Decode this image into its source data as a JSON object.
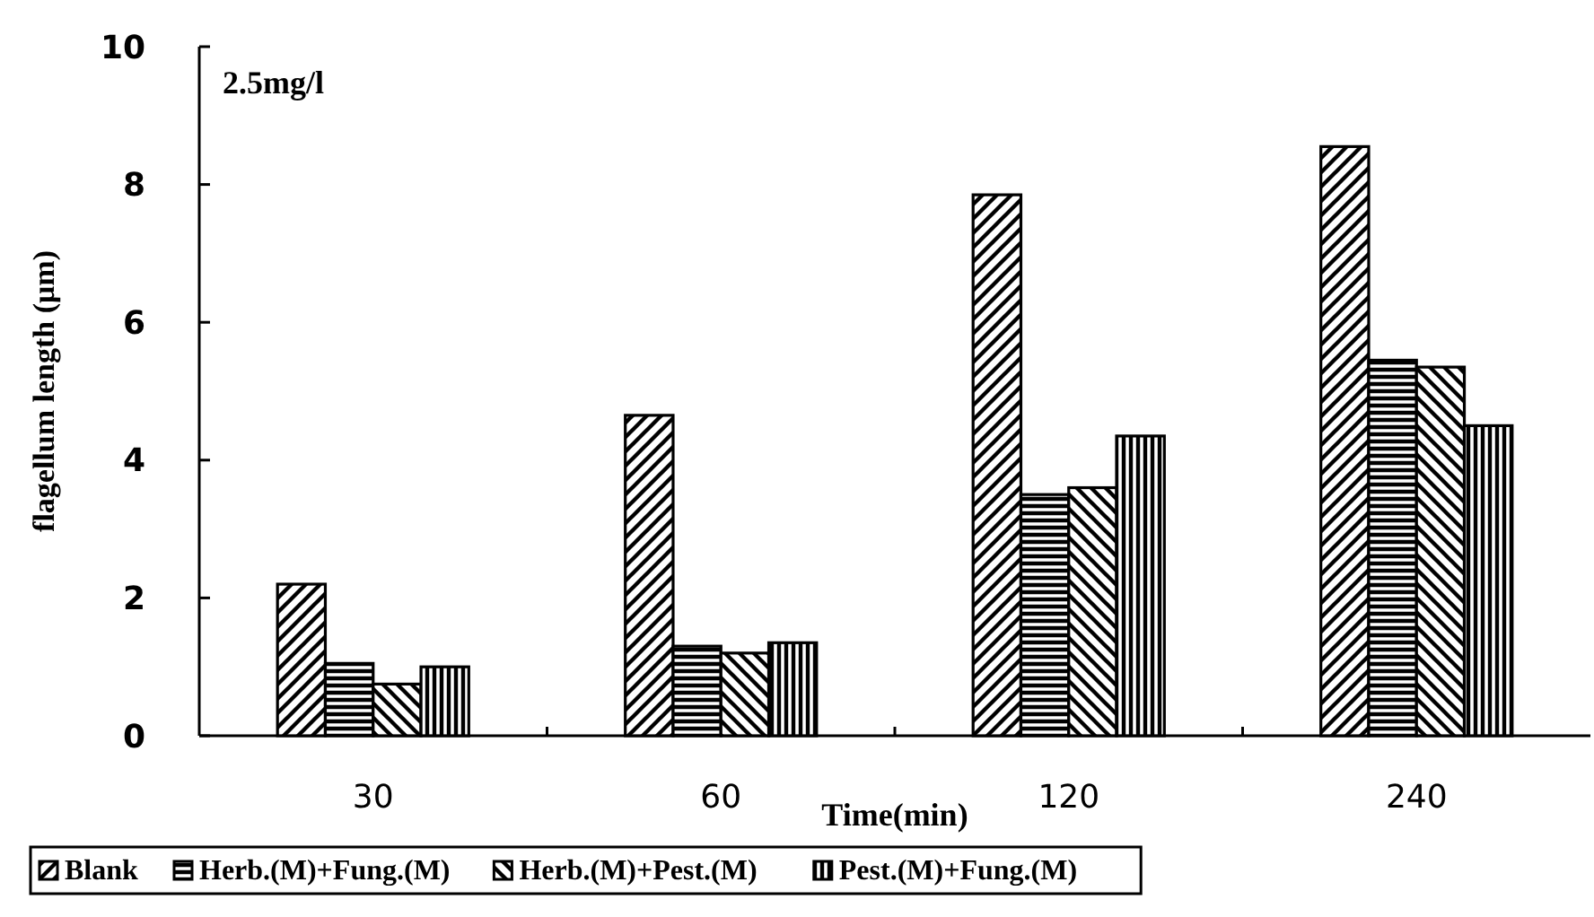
{
  "chart_data": {
    "type": "bar",
    "xlabel": "Time(min)",
    "ylabel": "flagellum length (μm)",
    "categories": [
      "30",
      "60",
      "120",
      "240"
    ],
    "series": [
      {
        "name": "Blank",
        "color": "#000000",
        "values": [
          2.2,
          4.65,
          7.85,
          8.55
        ]
      },
      {
        "name": "Herb.(M)+Fung.(M)",
        "color": "#000000",
        "values": [
          1.05,
          1.3,
          3.5,
          5.45
        ]
      },
      {
        "name": "Herb.(M)+Pest.(M)",
        "color": "#000000",
        "values": [
          0.75,
          1.2,
          3.6,
          5.35
        ]
      },
      {
        "name": "Pest.(M)+Fung.(M)",
        "color": "#000000",
        "values": [
          1.0,
          1.35,
          4.35,
          4.5
        ]
      }
    ],
    "ylim": [
      0,
      10
    ],
    "yticks": [
      0,
      2,
      4,
      6,
      8,
      10
    ],
    "grid": false,
    "legend": "bottom",
    "annotations": [
      "2.5mg/l"
    ]
  }
}
